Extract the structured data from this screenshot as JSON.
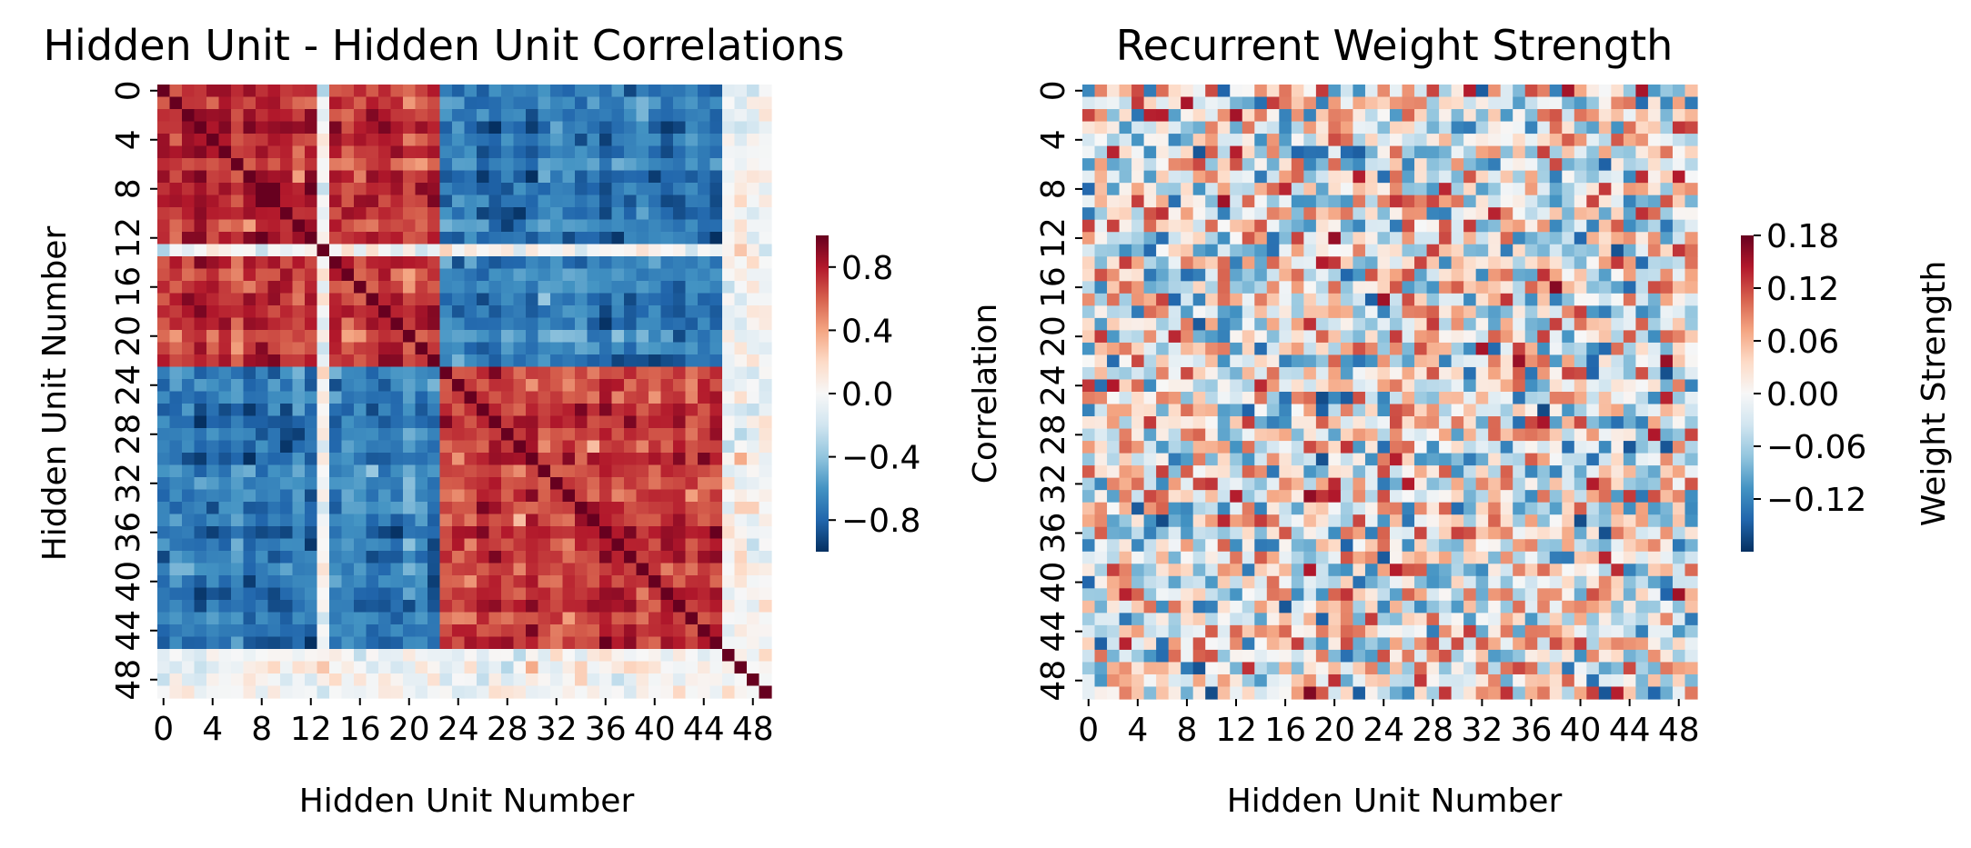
{
  "chart_data": [
    {
      "type": "heatmap",
      "title": "Hidden Unit - Hidden Unit Correlations",
      "xlabel": "Hidden Unit Number",
      "ylabel": "Hidden Unit Number",
      "n_units": 50,
      "x_tick_labels": [
        "0",
        "4",
        "8",
        "12",
        "16",
        "20",
        "24",
        "28",
        "32",
        "36",
        "40",
        "44",
        "48"
      ],
      "y_tick_labels": [
        "0",
        "4",
        "8",
        "12",
        "16",
        "20",
        "24",
        "28",
        "32",
        "36",
        "40",
        "44",
        "48"
      ],
      "colorbar": {
        "label": "Correlation",
        "vmin": -1.0,
        "vmax": 1.0,
        "tick_values": [
          -0.8,
          -0.4,
          0.0,
          0.4,
          0.8
        ],
        "tick_labels": [
          "−0.8",
          "−0.4",
          "0.0",
          "0.4",
          "0.8"
        ]
      },
      "colormap": "RdBu_r",
      "structure": {
        "block_a_units": [
          0,
          22
        ],
        "block_b_units": [
          23,
          45
        ],
        "within_block_correlation": 0.8,
        "between_block_correlation": -0.8,
        "weakly_correlated_units": [
          13,
          46,
          47,
          48,
          49
        ],
        "diagonal": 1.0
      }
    },
    {
      "type": "heatmap",
      "title": "Recurrent Weight Strength",
      "xlabel": "Hidden Unit Number",
      "ylabel": "",
      "n_units": 50,
      "x_tick_labels": [
        "0",
        "4",
        "8",
        "12",
        "16",
        "20",
        "24",
        "28",
        "32",
        "36",
        "40",
        "44",
        "48"
      ],
      "y_tick_labels": [
        "0",
        "4",
        "8",
        "12",
        "16",
        "20",
        "24",
        "28",
        "32",
        "36",
        "40",
        "44",
        "48"
      ],
      "colorbar": {
        "label": "Weight Strength",
        "vmin": -0.18,
        "vmax": 0.18,
        "tick_values": [
          -0.12,
          -0.06,
          0.0,
          0.06,
          0.12,
          0.18
        ],
        "tick_labels": [
          "−0.12",
          "−0.06",
          "0.00",
          "0.06",
          "0.12",
          "0.18"
        ]
      },
      "colormap": "RdBu_r",
      "structure": {
        "distribution": "random",
        "value_range": [
          -0.18,
          0.18
        ]
      }
    }
  ]
}
